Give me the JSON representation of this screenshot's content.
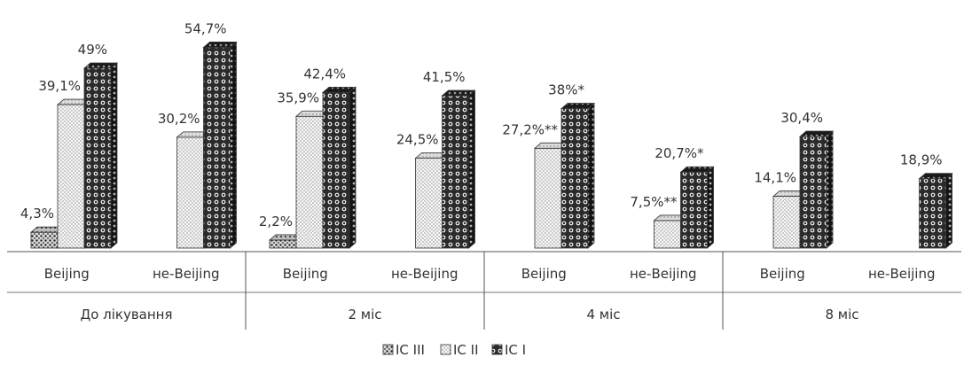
{
  "chart_data": {
    "type": "bar",
    "style": "3d-clustered-column",
    "groups": [
      {
        "label": "До лікування",
        "categories": [
          "Beijing",
          "не-Beijing"
        ]
      },
      {
        "label": "2 міс",
        "categories": [
          "Beijing",
          "не-Beijing"
        ]
      },
      {
        "label": "4 міс",
        "categories": [
          "Beijing",
          "не-Beijing"
        ]
      },
      {
        "label": "8 міс",
        "categories": [
          "Beijing",
          "не-Beijing"
        ]
      }
    ],
    "series": [
      {
        "name": "IC III",
        "values": [
          4.3,
          null,
          2.2,
          null,
          null,
          null,
          null,
          null
        ],
        "labels": [
          "4,3%",
          "",
          "2,2%",
          "",
          "",
          "",
          "",
          ""
        ]
      },
      {
        "name": "IC II",
        "values": [
          39.1,
          30.2,
          35.9,
          24.5,
          27.2,
          7.5,
          14.1,
          null
        ],
        "labels": [
          "39,1%",
          "30,2%",
          "35,9%",
          "24,5%",
          "27,2%**",
          "7,5%**",
          "14,1%",
          ""
        ]
      },
      {
        "name": "IC I",
        "values": [
          49,
          54.7,
          42.4,
          41.5,
          38,
          20.7,
          30.4,
          18.9
        ],
        "labels": [
          "49%",
          "54,7%",
          "42,4%",
          "41,5%",
          "38%*",
          "20,7%*",
          "30,4%",
          "18,9%"
        ]
      }
    ],
    "legend_position": "bottom",
    "grid": false
  }
}
